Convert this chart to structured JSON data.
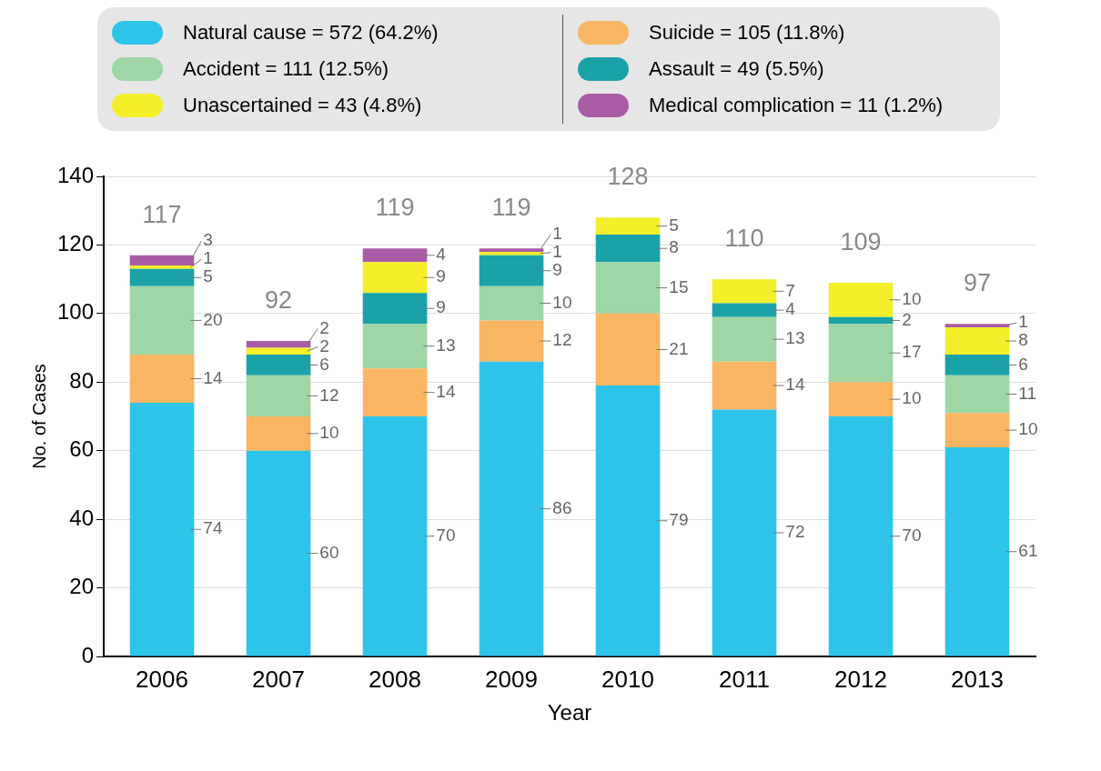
{
  "chart_data": {
    "type": "bar",
    "stacked": true,
    "xlabel": "Year",
    "ylabel": "No. of Cases",
    "categories": [
      "2006",
      "2007",
      "2008",
      "2009",
      "2010",
      "2011",
      "2012",
      "2013"
    ],
    "ylim": [
      0,
      140
    ],
    "yticks": [
      0,
      20,
      40,
      60,
      80,
      100,
      120,
      140
    ],
    "grid": "y",
    "legend": "top",
    "series": [
      {
        "name": "Natural cause = 572 (64.2%)",
        "color": "#2ec4ea",
        "values": [
          74,
          60,
          70,
          86,
          79,
          72,
          70,
          61
        ],
        "value_labels": [
          "74",
          "60",
          "70",
          "86",
          "79",
          "72",
          "70",
          "61"
        ]
      },
      {
        "name": "Suicide = 105 (11.8%)",
        "color": "#f9b562",
        "values": [
          14,
          10,
          14,
          12,
          21,
          14,
          10,
          10
        ],
        "value_labels": [
          "14",
          "10",
          "14",
          "12",
          "21",
          "14",
          "10",
          "10"
        ]
      },
      {
        "name": "Accident = 111 (12.5%)",
        "color": "#9ed6a5",
        "values": [
          20,
          12,
          13,
          10,
          15,
          13,
          17,
          11
        ],
        "value_labels": [
          "20",
          "12",
          "13",
          "10",
          "15",
          "13",
          "17",
          "11"
        ]
      },
      {
        "name": "Assault = 49 (5.5%)",
        "color": "#1aa2a8",
        "values": [
          5,
          6,
          9,
          9,
          8,
          4,
          2,
          6
        ],
        "value_labels": [
          "5",
          "6",
          "9",
          "9",
          "8",
          "4",
          "2",
          "6"
        ]
      },
      {
        "name": "Unascertained = 43 (4.8%)",
        "color": "#f4ef2a",
        "values": [
          1,
          2,
          9,
          1,
          5,
          7,
          10,
          8
        ],
        "value_labels": [
          "1",
          "2",
          "9",
          "1",
          "5",
          "7",
          "10",
          "8"
        ]
      },
      {
        "name": "Medical complication = 11 (1.2%)",
        "color": "#a95ca6",
        "values": [
          3,
          2,
          4,
          1,
          0,
          0,
          0,
          1
        ],
        "value_labels": [
          "3",
          "2",
          "4",
          "1",
          null,
          null,
          null,
          "1"
        ]
      }
    ],
    "totals": [
      "117",
      "92",
      "119",
      "119",
      "128",
      "110",
      "109",
      "97"
    ]
  }
}
